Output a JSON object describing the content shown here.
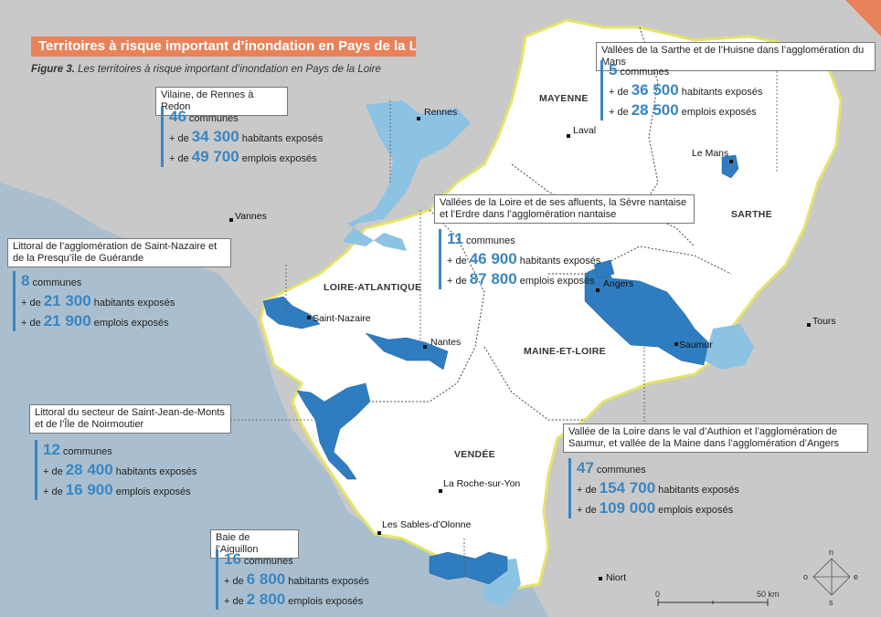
{
  "title": "Territoires à risque important d’inondation en Pays de la Loire",
  "caption": {
    "label": "Figure 3.",
    "text": "Les territoires à risque important d’inondation en Pays de la Loire"
  },
  "colors": {
    "high_risk": "#2f7dc0",
    "low_risk": "#8cc3e3",
    "region": "#ffffff",
    "sea": "#a9bfcf",
    "accent": "#e8825a"
  },
  "callouts": [
    {
      "title": "Vilaine, de Rennes à Redon",
      "communes": {
        "num": "46",
        "text": "communes"
      },
      "habitants": {
        "pre": "+ de",
        "num": "34 300",
        "text": "habitants exposés"
      },
      "emplois": {
        "pre": "+ de",
        "num": "49 700",
        "text": "emplois exposés"
      }
    },
    {
      "title": "Vallées de la Sarthe et de l’Huisne dans l’agglomération du Mans",
      "communes": {
        "num": "5",
        "text": "communes"
      },
      "habitants": {
        "pre": "+ de",
        "num": "36 500",
        "text": "habitants exposés"
      },
      "emplois": {
        "pre": "+ de",
        "num": "28 500",
        "text": "emplois exposés"
      }
    },
    {
      "title": "Littoral de l’agglomération de Saint-Nazaire et de la Presqu’île de Guérande",
      "communes": {
        "num": "8",
        "text": "communes"
      },
      "habitants": {
        "pre": "+ de",
        "num": "21 300",
        "text": "habitants exposés"
      },
      "emplois": {
        "pre": "+ de",
        "num": "21 900",
        "text": "emplois exposés"
      }
    },
    {
      "title": "Vallées de la Loire et de ses afluents, la Sèvre nantaise et l’Erdre dans l’agglomération nantaise",
      "communes": {
        "num": "11",
        "text": "communes"
      },
      "habitants": {
        "pre": "+ de",
        "num": "46 900",
        "text": "habitants exposés"
      },
      "emplois": {
        "pre": "+ de",
        "num": "87 800",
        "text": "emplois exposés"
      }
    },
    {
      "title": "Littoral du secteur de Saint-Jean-de-Monts et de l’Île de Noirmoutier",
      "communes": {
        "num": "12",
        "text": "communes"
      },
      "habitants": {
        "pre": "+ de",
        "num": "28 400",
        "text": "habitants exposés"
      },
      "emplois": {
        "pre": "+ de",
        "num": "16 900",
        "text": "emplois exposés"
      }
    },
    {
      "title": "Vallée de la Loire dans le val d’Authion et l’agglomération de Saumur, et vallée de la Maine dans l’agglomération d’Angers",
      "communes": {
        "num": "47",
        "text": "communes"
      },
      "habitants": {
        "pre": "+ de",
        "num": "154 700",
        "text": "habitants exposés"
      },
      "emplois": {
        "pre": "+ de",
        "num": "109 000",
        "text": "emplois exposés"
      }
    },
    {
      "title": "Baie de l’Aiguillon",
      "communes": {
        "num": "16",
        "text": "communes"
      },
      "habitants": {
        "pre": "+ de",
        "num": "6 800",
        "text": "habitants exposés"
      },
      "emplois": {
        "pre": "+ de",
        "num": "2 800",
        "text": "emplois exposés"
      }
    }
  ],
  "cities": [
    "Rennes",
    "Laval",
    "Le Mans",
    "Vannes",
    "Saint-Nazaire",
    "Nantes",
    "Angers",
    "Saumur",
    "Tours",
    "La Roche-sur-Yon",
    "Les Sables-d’Olonne",
    "Niort"
  ],
  "departments": [
    "MAYENNE",
    "SARTHE",
    "LOIRE-ATLANTIQUE",
    "MAINE-ET-LOIRE",
    "VENDÉE"
  ],
  "scale": {
    "start": "0",
    "end": "50 km"
  },
  "compass": {
    "n": "n",
    "s": "s",
    "e": "e",
    "o": "o"
  }
}
